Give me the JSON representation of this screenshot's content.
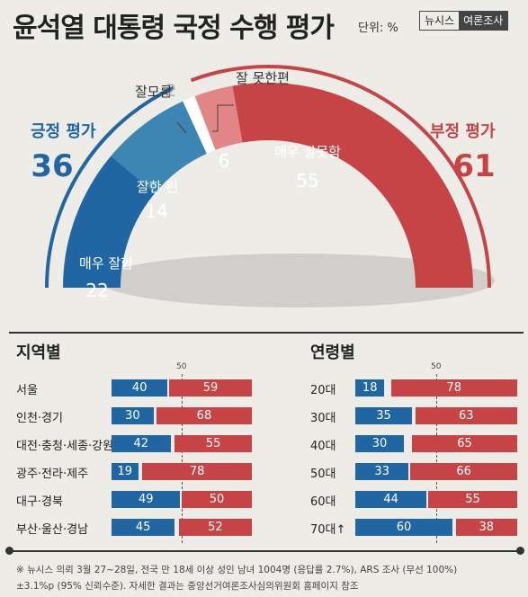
{
  "header": {
    "title": "윤석열 대통령 국정 수행 평가",
    "unit": "단위: %",
    "brand_left": "뉴시스",
    "brand_right": "여론조사"
  },
  "gauge": {
    "positive": {
      "label": "긍정 평가",
      "value": "36",
      "color": "#1f66a3"
    },
    "negative": {
      "label": "부정 평가",
      "value": "61",
      "color": "#c74446"
    },
    "segments": [
      {
        "label": "매우 잘함",
        "value": 22,
        "color": "#1f66a3"
      },
      {
        "label": "잘한 편",
        "value": 14,
        "color": "#3b86b3"
      },
      {
        "label": "잘모름",
        "value": 2,
        "color": "#ffffff"
      },
      {
        "label": "잘 못한편",
        "value": 6,
        "color": "#e28587"
      },
      {
        "label": "매우 잘못함",
        "value": 55,
        "color": "#c74446"
      }
    ]
  },
  "chart_data": [
    {
      "type": "bar",
      "title": "지역별",
      "stacked": true,
      "categories": [
        "서울",
        "인천·경기",
        "대전·충청·세종·강원",
        "광주·전라·제주",
        "대구·경북",
        "부산·울산·경남"
      ],
      "series": [
        {
          "values": [
            40,
            30,
            42,
            19,
            49,
            45
          ],
          "color": "#1f66a3"
        },
        {
          "values": [
            59,
            68,
            55,
            78,
            50,
            52
          ],
          "color": "#c74446"
        }
      ],
      "reference_line": 50
    },
    {
      "type": "bar",
      "title": "연령별",
      "stacked": true,
      "categories": [
        "20대",
        "30대",
        "40대",
        "50대",
        "60대",
        "70대↑"
      ],
      "series": [
        {
          "values": [
            18,
            35,
            30,
            33,
            44,
            60
          ],
          "color": "#1f66a3"
        },
        {
          "values": [
            78,
            63,
            65,
            66,
            55,
            38
          ],
          "color": "#c74446"
        }
      ],
      "reference_line": 50
    }
  ],
  "footnote": {
    "line1": "※ 뉴시스 의뢰 3월 27~28일, 전국 만 18세 이상 성인 남녀 1004명 (응답률 2.7%), ARS 조사 (무선 100%)",
    "line2": "±3.1%p (95% 신뢰수준). 자세한 결과는 중앙선거여론조사심의위원회 홈페이지 참조"
  }
}
